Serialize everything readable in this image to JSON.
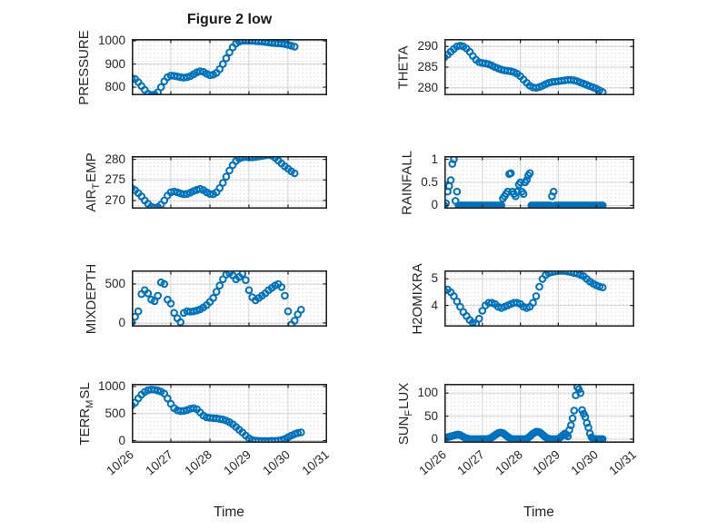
{
  "figure": {
    "title": "Figure 2 low",
    "marker_color": "#0072BD",
    "axis_color": "#242424",
    "grid_color": "#d4d4d4",
    "minor_grid_color": "#c8c8c8",
    "background": "#ffffff"
  },
  "x_axis": {
    "label": "Time",
    "tick_labels": [
      "10/26",
      "10/27",
      "10/28",
      "10/29",
      "10/30",
      "10/31"
    ],
    "range_days": [
      0,
      5
    ]
  },
  "chart_data": [
    {
      "name": "PRESSURE",
      "type": "scatter",
      "ylabel": {
        "pre": "PRESSURE",
        "sub": "",
        "post": ""
      },
      "yticks": [
        800,
        900,
        1000
      ],
      "ylim": [
        765,
        1008
      ],
      "x_start": 0,
      "x_step_days": 0.083333,
      "y": [
        840,
        835,
        822,
        805,
        788,
        772,
        766,
        768,
        778,
        800,
        825,
        843,
        850,
        849,
        846,
        843,
        841,
        843,
        848,
        856,
        864,
        869,
        866,
        858,
        852,
        854,
        862,
        878,
        900,
        925,
        950,
        972,
        988,
        997,
        1000,
        1001,
        1000,
        1000,
        999,
        998,
        997,
        995,
        993,
        991,
        990,
        989,
        988,
        986,
        983,
        979,
        975
      ]
    },
    {
      "name": "THETA",
      "type": "scatter",
      "ylabel": {
        "pre": "THETA",
        "sub": "",
        "post": ""
      },
      "yticks": [
        280,
        285,
        290
      ],
      "ylim": [
        278.2,
        291.8
      ],
      "x_start": 0,
      "x_step_days": 0.083333,
      "y": [
        287.4,
        288.0,
        288.7,
        289.4,
        290.0,
        290.2,
        290.0,
        289.5,
        288.7,
        287.7,
        286.8,
        286.2,
        286.0,
        285.9,
        285.7,
        285.4,
        285.0,
        284.7,
        284.4,
        284.2,
        284.1,
        284.0,
        283.8,
        283.4,
        282.8,
        282.0,
        281.2,
        280.5,
        280.1,
        280.0,
        280.2,
        280.5,
        280.9,
        281.2,
        281.4,
        281.5,
        281.6,
        281.7,
        281.8,
        281.9,
        281.9,
        281.8,
        281.6,
        281.3,
        281.0,
        280.7,
        280.4,
        280.1,
        279.8,
        279.4,
        279.0
      ]
    },
    {
      "name": "AIR_TEMP",
      "type": "scatter",
      "ylabel": {
        "pre": "AIR",
        "sub": "T",
        "post": "EMP"
      },
      "yticks": [
        270,
        275,
        280
      ],
      "ylim": [
        268.0,
        280.8
      ],
      "x_start": 0,
      "x_step_days": 0.083333,
      "y": [
        273.0,
        272.5,
        271.8,
        271.0,
        270.0,
        269.2,
        268.5,
        268.2,
        268.4,
        269.0,
        270.0,
        271.2,
        272.0,
        272.2,
        272.0,
        271.7,
        271.5,
        271.6,
        271.9,
        272.3,
        272.6,
        272.8,
        272.5,
        272.0,
        271.6,
        271.5,
        272.0,
        273.0,
        274.3,
        275.8,
        277.3,
        278.6,
        279.6,
        280.2,
        280.5,
        280.6,
        280.5,
        280.5,
        280.6,
        280.7,
        280.8,
        281.0,
        281.1,
        280.9,
        280.4,
        279.7,
        279.0,
        278.3,
        277.7,
        277.1,
        276.6
      ]
    },
    {
      "name": "RAINFALL",
      "type": "scatter",
      "ylabel": {
        "pre": "RAINFALL",
        "sub": "",
        "post": ""
      },
      "yticks": [
        0,
        0.5,
        1
      ],
      "ylim": [
        -0.07,
        1.07
      ],
      "x_start": 0,
      "x_step_days": 0.041667,
      "y": [
        0,
        0.05,
        0.3,
        0.42,
        0.55,
        0.9,
        1,
        0.1,
        0.3,
        0,
        0,
        0,
        0,
        0,
        0,
        0,
        0,
        0,
        0,
        0,
        0,
        0,
        0,
        0,
        0,
        0,
        0,
        0,
        0,
        0,
        0,
        0,
        0,
        0,
        0,
        0,
        0,
        0.15,
        0.2,
        0.25,
        0.3,
        0.68,
        0.7,
        0.3,
        0.25,
        0.2,
        0.3,
        0.45,
        0.5,
        0.3,
        0.25,
        0.5,
        0.55,
        0.65,
        0.7,
        0,
        0,
        0,
        0,
        0,
        0,
        0,
        0,
        0,
        0,
        0,
        0,
        0,
        0.2,
        0.3,
        0,
        0,
        0,
        0,
        0,
        0,
        0,
        0,
        0,
        0,
        0,
        0,
        0,
        0,
        0,
        0,
        0,
        0,
        0,
        0,
        0,
        0,
        0,
        0,
        0,
        0,
        0,
        0,
        0,
        0,
        0
      ]
    },
    {
      "name": "MIXDEPTH",
      "type": "scatter",
      "ylabel": {
        "pre": "MIXDEPTH",
        "sub": "",
        "post": ""
      },
      "yticks": [
        0,
        500
      ],
      "ylim": [
        -47,
        674
      ],
      "x_start": 0,
      "x_step_days": 0.083333,
      "y": [
        10,
        80,
        150,
        370,
        420,
        380,
        300,
        280,
        350,
        520,
        500,
        300,
        250,
        130,
        60,
        10,
        130,
        150,
        145,
        150,
        160,
        175,
        200,
        230,
        270,
        320,
        400,
        480,
        560,
        620,
        640,
        610,
        560,
        590,
        630,
        550,
        420,
        330,
        290,
        320,
        350,
        380,
        420,
        450,
        480,
        500,
        460,
        350,
        150,
        -20,
        30,
        110,
        170
      ]
    },
    {
      "name": "H2OMIXRA",
      "type": "scatter",
      "ylabel": {
        "pre": "H2OMIXRA",
        "sub": "",
        "post": ""
      },
      "yticks": [
        4,
        5
      ],
      "ylim": [
        3.2,
        5.32
      ],
      "x_start": 0,
      "x_step_days": 0.083333,
      "y": [
        4.55,
        4.6,
        4.5,
        4.35,
        4.15,
        3.95,
        3.75,
        3.6,
        3.45,
        3.35,
        3.3,
        3.5,
        3.8,
        4.0,
        4.1,
        4.1,
        4.05,
        3.95,
        3.9,
        3.95,
        4.0,
        4.05,
        4.1,
        4.1,
        4.05,
        3.95,
        3.9,
        3.95,
        4.1,
        4.35,
        4.7,
        5.0,
        5.15,
        5.22,
        5.26,
        5.28,
        5.3,
        5.3,
        5.3,
        5.28,
        5.25,
        5.22,
        5.2,
        5.15,
        5.1,
        5.0,
        4.9,
        4.82,
        4.76,
        4.71,
        4.68
      ]
    },
    {
      "name": "TERR_MSL",
      "type": "scatter",
      "ylabel": {
        "pre": "TERR",
        "sub": "M",
        "post": "SL"
      },
      "yticks": [
        0,
        500,
        1000
      ],
      "ylim": [
        -42,
        1050
      ],
      "x_start": 0,
      "x_step_days": 0.083333,
      "y": [
        650,
        700,
        780,
        850,
        900,
        930,
        945,
        940,
        925,
        905,
        870,
        780,
        680,
        600,
        560,
        545,
        550,
        565,
        590,
        600,
        580,
        520,
        460,
        430,
        420,
        415,
        410,
        400,
        390,
        370,
        340,
        300,
        250,
        200,
        150,
        90,
        40,
        10,
        0,
        -5,
        -10,
        -10,
        -10,
        -5,
        -5,
        0,
        10,
        30,
        60,
        90,
        120,
        140,
        150
      ]
    },
    {
      "name": "SUN_FLUX",
      "type": "scatter",
      "ylabel": {
        "pre": "SUN",
        "sub": "F",
        "post": "LUX"
      },
      "yticks": [
        0,
        50,
        100
      ],
      "ylim": [
        -8,
        120
      ],
      "x_start": 0,
      "x_step_days": 0.041667,
      "y": [
        2,
        3,
        4,
        5,
        6,
        7,
        8,
        9,
        10,
        10,
        9,
        7,
        5,
        3,
        2,
        1,
        0,
        0,
        0,
        0,
        0,
        0,
        0,
        0,
        0,
        0,
        0,
        0,
        1,
        2,
        4,
        6,
        9,
        11,
        13,
        14,
        14,
        13,
        11,
        8,
        5,
        3,
        1,
        0,
        0,
        0,
        0,
        0,
        0,
        0,
        0,
        0,
        1,
        3,
        6,
        9,
        12,
        14,
        16,
        16,
        15,
        13,
        10,
        7,
        4,
        2,
        1,
        0,
        0,
        0,
        0,
        0,
        1,
        3,
        6,
        9,
        12,
        10,
        6,
        20,
        30,
        45,
        62,
        95,
        113,
        108,
        100,
        63,
        55,
        48,
        35,
        25,
        12,
        4,
        1,
        0,
        0,
        0,
        0,
        0,
        0
      ]
    }
  ]
}
